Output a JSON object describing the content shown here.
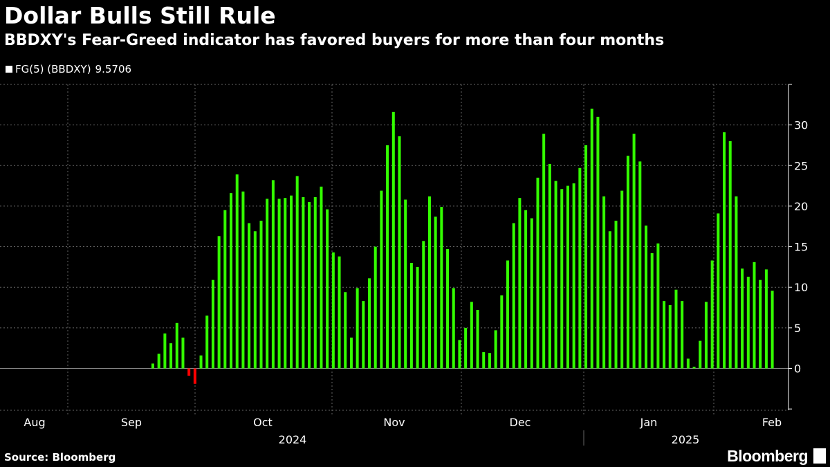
{
  "header": {
    "title": "Dollar Bulls Still Rule",
    "subtitle": "BBDXY's Fear-Greed indicator has favored buyers for more than four months"
  },
  "legend": {
    "label": "FG(5) (BBDXY)",
    "value": "9.5706"
  },
  "footer": {
    "source": "Source: Bloomberg",
    "brand": "Bloomberg"
  },
  "colors": {
    "positive": "#33ff00",
    "negative": "#ff0000",
    "grid": "#666666",
    "axis": "#ffffff",
    "background": "#000000"
  },
  "chart_data": {
    "type": "bar",
    "title": "Dollar Bulls Still Rule",
    "subtitle": "BBDXY's Fear-Greed indicator has favored buyers for more than four months",
    "series_name": "FG(5) (BBDXY)",
    "last_value": 9.5706,
    "ylim": [
      -5,
      35
    ],
    "yticks": [
      0,
      5,
      10,
      15,
      20,
      25,
      30
    ],
    "xlabels": [
      "Aug",
      "Sep",
      "Oct",
      "Nov",
      "Dec",
      "Jan",
      "Feb"
    ],
    "year_labels": [
      "2024",
      "2025"
    ],
    "grid": true,
    "values": [
      0.6,
      1.8,
      4.3,
      3.1,
      5.6,
      3.8,
      -0.9,
      -1.9,
      1.6,
      6.5,
      10.9,
      16.3,
      19.5,
      21.6,
      23.9,
      21.8,
      17.9,
      16.9,
      18.2,
      20.9,
      23.2,
      20.9,
      21.0,
      21.3,
      23.7,
      21.1,
      20.5,
      21.1,
      22.4,
      19.6,
      14.3,
      13.8,
      9.4,
      3.8,
      9.9,
      8.3,
      11.1,
      15.0,
      21.9,
      27.5,
      31.6,
      28.6,
      20.8,
      13.0,
      12.5,
      15.7,
      21.2,
      18.7,
      19.9,
      14.7,
      9.9,
      3.5,
      5.0,
      8.2,
      7.2,
      2.0,
      1.9,
      4.7,
      9.0,
      13.3,
      17.9,
      21.0,
      19.5,
      18.5,
      23.5,
      28.9,
      25.2,
      23.1,
      22.1,
      22.5,
      22.8,
      24.7,
      27.5,
      32.0,
      31.0,
      21.2,
      16.9,
      18.2,
      21.9,
      26.2,
      28.9,
      25.5,
      17.6,
      14.2,
      15.4,
      8.3,
      7.8,
      9.7,
      8.3,
      1.2,
      0.2,
      3.4,
      8.2,
      13.3,
      19.1,
      29.1,
      28.0,
      21.2,
      12.3,
      11.3,
      13.1,
      10.9,
      12.2,
      9.5706
    ]
  }
}
